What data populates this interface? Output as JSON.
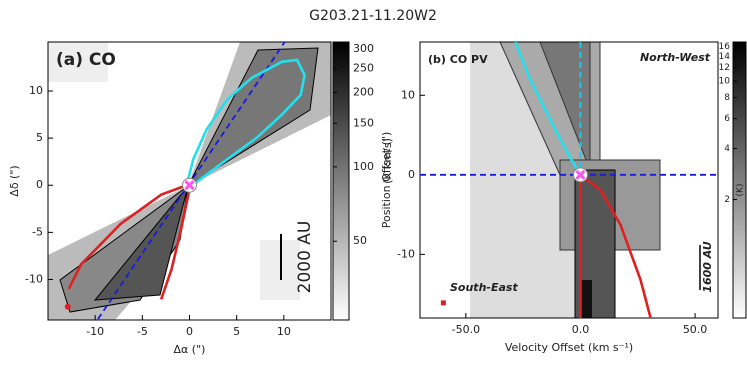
{
  "title": "G203.21-11.20W2",
  "chart_data": [
    {
      "type": "image",
      "panel_label": "(a) CO",
      "x_label": "Δα (\")",
      "y_label": "Δδ (\")",
      "xlim": [
        -15,
        15
      ],
      "ylim": [
        -14.3,
        15.2
      ],
      "xticks": [
        -10,
        -5,
        0,
        5,
        10
      ],
      "yticks": [
        -10,
        -5,
        0,
        5,
        10
      ],
      "colorbar": {
        "label": "(K km/s)",
        "scale": "log",
        "lim": [
          24,
          320
        ],
        "ticks": [
          50,
          100,
          150,
          200,
          250,
          300
        ]
      },
      "scale_bar": "2000 AU",
      "series": [
        {
          "color": "#1a1adc",
          "style": "dashed",
          "x": [
            -9.7,
            10.1
          ],
          "y": [
            -14.2,
            15.2
          ]
        },
        {
          "color": "#22e0ee",
          "style": "solid",
          "x": [
            -0.3,
            0.4,
            1.8,
            4,
            6.6,
            9.8,
            11.4,
            12.2,
            11.8,
            9.8,
            7.2,
            4,
            0.7,
            -0.3
          ],
          "y": [
            0,
            2.75,
            5.9,
            9.1,
            11.4,
            13.1,
            13.3,
            11.7,
            9.6,
            7.5,
            5.1,
            2.75,
            0.3,
            0
          ]
        },
        {
          "color": "#e02020",
          "style": "solid",
          "x": [
            -0.3,
            -3,
            -7.3,
            -11.5,
            -12.8
          ],
          "y": [
            0,
            -1,
            -4.1,
            -8.4,
            -11
          ]
        },
        {
          "color": "#e02020",
          "style": "solid",
          "x": [
            0,
            -0.9,
            -1.9,
            -3
          ],
          "y": [
            -0.4,
            -4.7,
            -8.9,
            -12.1
          ]
        },
        {
          "color": "#ff55ee",
          "marker": "x",
          "x": [
            0
          ],
          "y": [
            0
          ]
        },
        {
          "color": "#e02020",
          "marker": "dot",
          "x": [
            -12.9
          ],
          "y": [
            -12.9
          ]
        }
      ]
    },
    {
      "type": "image",
      "panel_label": "(b) CO PV",
      "x_label": "Velocity Offset (km s⁻¹)",
      "y_label": "Position Offset (\")",
      "xlim": [
        -70,
        60
      ],
      "ylim": [
        -18,
        16.7
      ],
      "xticks": [
        {
          "value": -50,
          "label": "-50.0"
        },
        {
          "value": 0,
          "label": "0.0"
        },
        {
          "value": 50,
          "label": "50.0"
        }
      ],
      "yticks": [
        -10,
        0,
        10
      ],
      "colorbar": {
        "label": "(K)",
        "scale": "log",
        "lim": [
          0.4,
          17
        ],
        "ticks": [
          2,
          4,
          6,
          8,
          10,
          12,
          14,
          16
        ]
      },
      "annotations": [
        "North-West",
        "South-East"
      ],
      "scale_bar": "1600 AU",
      "series": [
        {
          "color": "#1a1adc",
          "style": "dashed",
          "x": [
            -70,
            60
          ],
          "y": [
            0,
            0
          ]
        },
        {
          "color": "#22c8ee",
          "style": "dashed",
          "x": [
            0,
            0
          ],
          "y": [
            -18,
            16.7
          ]
        },
        {
          "color": "#e02020",
          "style": "solid",
          "x": [
            0,
            0
          ],
          "y": [
            0,
            -18
          ]
        },
        {
          "color": "#22e0ee",
          "style": "solid",
          "x": [
            -28.4,
            -21.8,
            -13.1,
            -5.2,
            0
          ],
          "y": [
            16.7,
            11.9,
            6.9,
            2.5,
            0
          ]
        },
        {
          "color": "#e02020",
          "style": "solid",
          "x": [
            0,
            8.7,
            17.5,
            26.2,
            30.6
          ],
          "y": [
            0,
            -1.9,
            -6.3,
            -13.2,
            -18
          ]
        },
        {
          "color": "#ff55ee",
          "marker": "x",
          "x": [
            0
          ],
          "y": [
            0
          ]
        },
        {
          "color": "#e02020",
          "marker": "square",
          "x": [
            -59.8
          ],
          "y": [
            -16.1
          ]
        }
      ]
    }
  ]
}
